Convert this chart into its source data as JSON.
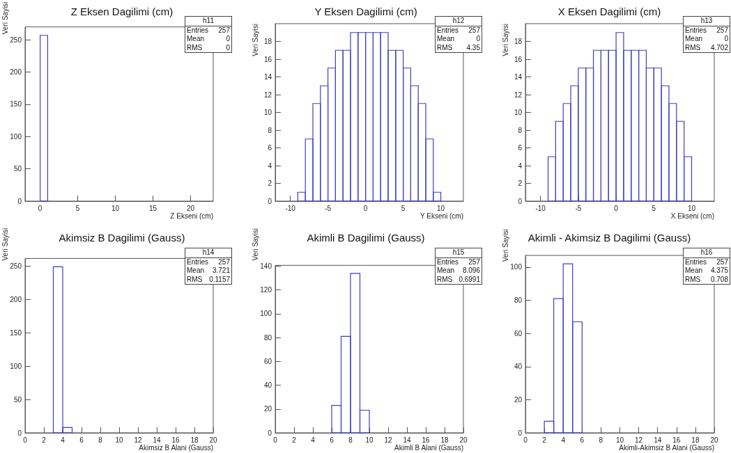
{
  "chart_data": [
    {
      "type": "histogram",
      "title": "Z Eksen Dagilimi (cm)",
      "xlabel": "Z Ekseni (cm)",
      "ylabel": "Veri Sayisi",
      "color": "#3f3fbf",
      "bins": [
        0,
        1
      ],
      "values": [
        257
      ],
      "xlim": [
        -2,
        23
      ],
      "xticks": [
        0,
        5,
        10,
        15,
        20
      ],
      "ylim": [
        0,
        270
      ],
      "yticks": [
        0,
        50,
        100,
        150,
        200,
        250
      ],
      "annotations": [
        "h11",
        "Entries",
        "257",
        "Mean",
        "0",
        "RMS",
        "0"
      ]
    },
    {
      "type": "histogram",
      "title": "Y Eksen Dagilimi (cm)",
      "xlabel": "Y Ekseni (cm)",
      "ylabel": "Veri Sayisi",
      "color": "#3f3fbf",
      "bins": [
        -9,
        -8,
        -7,
        -6,
        -5,
        -4,
        -3,
        -2,
        -1,
        0,
        1,
        2,
        3,
        4,
        5,
        6,
        7,
        8,
        9,
        10
      ],
      "values": [
        1,
        7,
        11,
        13,
        15,
        17,
        17,
        19,
        19,
        19,
        19,
        19,
        17,
        17,
        15,
        13,
        11,
        7,
        1
      ],
      "xlim": [
        -12,
        13
      ],
      "xticks": [
        -10,
        -5,
        0,
        5,
        10
      ],
      "ylim": [
        0,
        20
      ],
      "yticks": [
        0,
        2,
        4,
        6,
        8,
        10,
        12,
        14,
        16,
        18
      ],
      "annotations": [
        "h12",
        "Entries",
        "257",
        "Mean",
        "0",
        "RMS",
        "4.35"
      ]
    },
    {
      "type": "histogram",
      "title": "X Eksen Dagilimi (cm)",
      "xlabel": "X Ekseni (cm)",
      "ylabel": "Veri Sayisi",
      "color": "#3f3fbf",
      "bins": [
        -9,
        -8,
        -7,
        -6,
        -5,
        -4,
        -3,
        -2,
        -1,
        0,
        1,
        2,
        3,
        4,
        5,
        6,
        7,
        8,
        9,
        10
      ],
      "values": [
        5,
        9,
        11,
        13,
        15,
        15,
        17,
        17,
        17,
        19,
        17,
        17,
        17,
        15,
        15,
        13,
        11,
        9,
        5
      ],
      "xlim": [
        -12,
        13
      ],
      "xticks": [
        -10,
        -5,
        0,
        5,
        10
      ],
      "ylim": [
        0,
        20
      ],
      "yticks": [
        0,
        2,
        4,
        6,
        8,
        10,
        12,
        14,
        16,
        18
      ],
      "annotations": [
        "h13",
        "Entries",
        "257",
        "Mean",
        "0",
        "RMS",
        "4.702"
      ]
    },
    {
      "type": "histogram",
      "title": "Akimsiz B Dagilimi (Gauss)",
      "xlabel": "Akimsiz B Alani (Gauss)",
      "ylabel": "Veri Sayisi",
      "color": "#3f3fbf",
      "bins": [
        3,
        4,
        5
      ],
      "values": [
        249,
        8
      ],
      "xlim": [
        0,
        20
      ],
      "xticks": [
        0,
        2,
        4,
        6,
        8,
        10,
        12,
        14,
        16,
        18,
        20
      ],
      "ylim": [
        0,
        261.45
      ],
      "yticks": [
        0,
        50,
        100,
        150,
        200,
        250
      ],
      "annotations": [
        "h14",
        "Entries",
        "257",
        "Mean",
        "3.721",
        "RMS",
        "0.1157"
      ]
    },
    {
      "type": "histogram",
      "title": "Akimli B Dagilimi (Gauss)",
      "xlabel": "Akimli B Alani (Gauss)",
      "ylabel": "Veri Sayisi",
      "color": "#3f3fbf",
      "bins": [
        6,
        7,
        8,
        9,
        10
      ],
      "values": [
        23,
        81,
        134,
        19
      ],
      "xlim": [
        0,
        20
      ],
      "xticks": [
        0,
        2,
        4,
        6,
        8,
        10,
        12,
        14,
        16,
        18,
        20
      ],
      "ylim": [
        0,
        140.7
      ],
      "yticks": [
        0,
        20,
        40,
        60,
        80,
        100,
        120,
        140
      ],
      "annotations": [
        "h15",
        "Entries",
        "257",
        "Mean",
        "8.096",
        "RMS",
        "0.6991"
      ]
    },
    {
      "type": "histogram",
      "title": "Akimli - Akimsiz B Dagilimi (Gauss)",
      "xlabel": "Akimli-Akimsiz B Alani (Gauss)",
      "ylabel": "Veri Sayisi",
      "color": "#3f3fbf",
      "bins": [
        2,
        3,
        4,
        5,
        6
      ],
      "values": [
        7,
        81,
        102,
        67
      ],
      "xlim": [
        0,
        20
      ],
      "xticks": [
        0,
        2,
        4,
        6,
        8,
        10,
        12,
        14,
        16,
        18,
        20
      ],
      "ylim": [
        0,
        107.1
      ],
      "yticks": [
        0,
        20,
        40,
        60,
        80,
        100
      ],
      "annotations": [
        "h16",
        "Entries",
        "257",
        "Mean",
        "4.375",
        "RMS",
        "0.708"
      ]
    }
  ]
}
